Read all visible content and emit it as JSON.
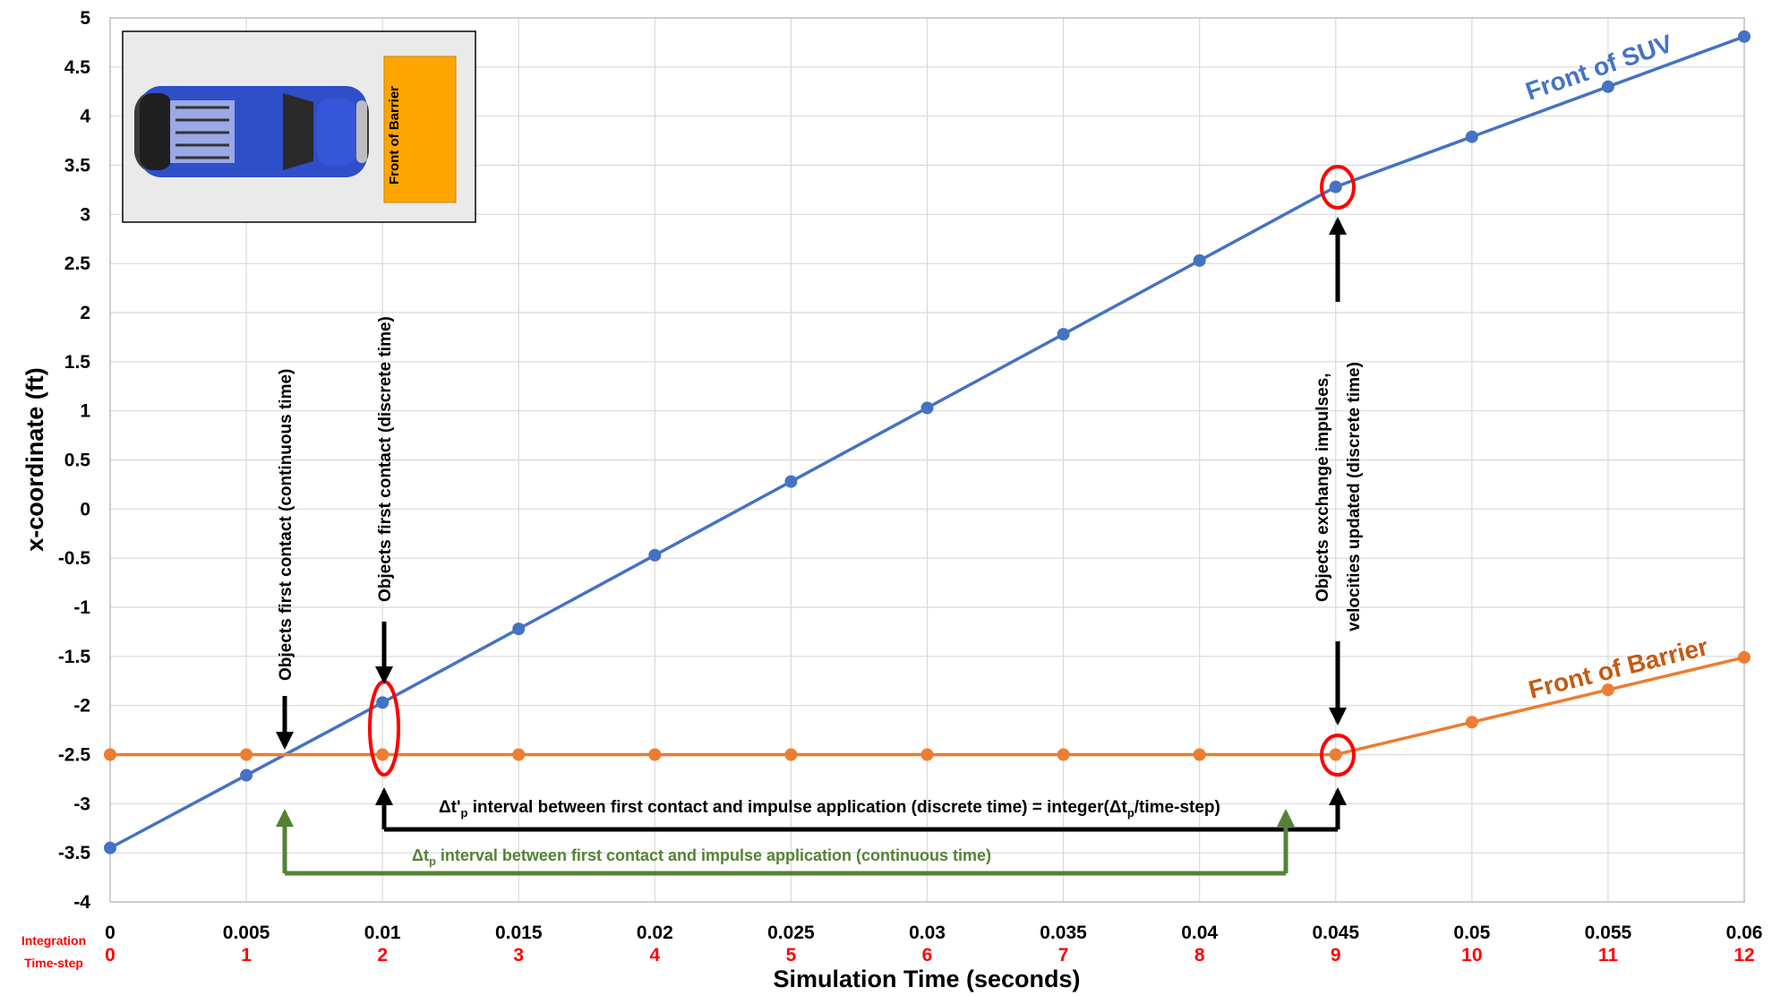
{
  "chart_data": {
    "type": "line",
    "xlabel": "Simulation Time (seconds)",
    "ylabel": "x-coordinate (ft)",
    "xlim": [
      0,
      0.06
    ],
    "ylim": [
      -4,
      5
    ],
    "x_ticks": [
      "0",
      "0.005",
      "0.01",
      "0.015",
      "0.02",
      "0.025",
      "0.03",
      "0.035",
      "0.04",
      "0.045",
      "0.05",
      "0.055",
      "0.06"
    ],
    "y_ticks": [
      "5",
      "4.5",
      "4",
      "3.5",
      "3",
      "2.5",
      "2",
      "1.5",
      "1",
      "0.5",
      "0",
      "-0.5",
      "-1",
      "-1.5",
      "-2",
      "-2.5",
      "-3",
      "-3.5",
      "-4"
    ],
    "secondary_axis": {
      "label_line1": "Integration",
      "label_line2": "Time-step",
      "ticks": [
        "0",
        "1",
        "2",
        "3",
        "4",
        "5",
        "6",
        "7",
        "8",
        "9",
        "10",
        "11",
        "12"
      ]
    },
    "x": [
      0,
      0.005,
      0.01,
      0.015,
      0.02,
      0.025,
      0.03,
      0.035,
      0.04,
      0.045,
      0.05,
      0.055,
      0.06
    ],
    "series": [
      {
        "name": "Front of SUV",
        "color": "#4472c4",
        "values": [
          -3.45,
          -2.71,
          -1.97,
          -1.22,
          -0.47,
          0.28,
          1.03,
          1.78,
          2.53,
          3.28,
          3.79,
          4.3,
          4.81
        ]
      },
      {
        "name": "Front of Barrier",
        "color": "#ed7d31",
        "values": [
          -2.5,
          -2.5,
          -2.5,
          -2.5,
          -2.5,
          -2.5,
          -2.5,
          -2.5,
          -2.5,
          -2.5,
          -2.17,
          -1.84,
          -1.51
        ]
      }
    ],
    "grid": true,
    "annotations": {
      "continuous_contact": "Objects first contact (continuous time)",
      "discrete_contact": "Objects first contact (discrete time)",
      "impulse_line1": "Objects exchange impulses,",
      "impulse_line2": "velocities updated (discrete time)",
      "dtp_prime_delta": "Δt'",
      "dtp_prime_sub": "p",
      "dtp_prime_mid": " interval between first contact and impulse application (discrete time) = integer(Δt",
      "dtp_prime_sub2": "p",
      "dtp_prime_end": "/time-step)",
      "dtp_delta": "Δt",
      "dtp_sub": "p",
      "dtp_rest": " interval between first contact and impulse application (continuous time)"
    },
    "inset": {
      "barrier_label": "Front of Barrier"
    },
    "colors": {
      "suv": "#4472c4",
      "barrier": "#ed7d31",
      "highlight": "#ff0000",
      "continuous": "#548235",
      "discrete": "#000000"
    }
  }
}
